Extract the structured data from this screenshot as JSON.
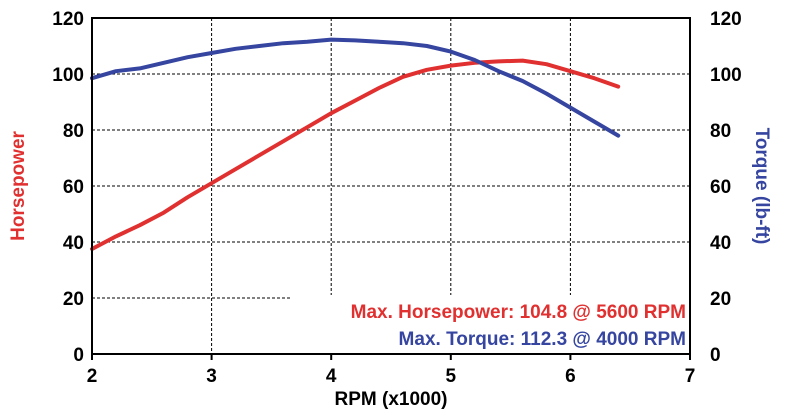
{
  "chart_data": {
    "type": "line",
    "xlabel": "RPM (x1000)",
    "xlim": [
      2,
      7
    ],
    "xticks": [
      2,
      3,
      4,
      5,
      6,
      7
    ],
    "grid": true,
    "y_left": {
      "label": "Horsepower",
      "lim": [
        0,
        120
      ],
      "ticks": [
        0,
        20,
        40,
        60,
        80,
        100,
        120
      ],
      "color": "#e03030"
    },
    "y_right": {
      "label": "Torque (lb-ft)",
      "lim": [
        0,
        120
      ],
      "ticks": [
        0,
        20,
        40,
        60,
        80,
        100,
        120
      ],
      "color": "#3545a0"
    },
    "series": [
      {
        "axis": "left",
        "color": "#e03030",
        "x": [
          2.0,
          2.2,
          2.4,
          2.6,
          2.8,
          3.0,
          3.2,
          3.4,
          3.6,
          3.8,
          4.0,
          4.2,
          4.4,
          4.6,
          4.8,
          5.0,
          5.2,
          5.4,
          5.6,
          5.8,
          6.0,
          6.2,
          6.4
        ],
        "y": [
          37.5,
          42,
          46,
          50.5,
          56,
          61,
          66,
          71,
          76,
          81,
          86,
          90.5,
          95,
          99,
          101.5,
          103,
          104,
          104.5,
          104.8,
          103.5,
          101,
          98.5,
          95.5
        ]
      },
      {
        "axis": "right",
        "color": "#3545a0",
        "x": [
          2.0,
          2.2,
          2.4,
          2.6,
          2.8,
          3.0,
          3.2,
          3.4,
          3.6,
          3.8,
          4.0,
          4.2,
          4.4,
          4.6,
          4.8,
          5.0,
          5.2,
          5.4,
          5.6,
          5.8,
          6.0,
          6.2,
          6.4
        ],
        "y": [
          98.5,
          101,
          102,
          104,
          106,
          107.5,
          109,
          110,
          111,
          111.5,
          112.3,
          112,
          111.5,
          111,
          110,
          108,
          105,
          101,
          97.5,
          93,
          88,
          83,
          78
        ]
      }
    ],
    "annotations": [
      {
        "text": "Max. Horsepower: 104.8 @ 5600 RPM",
        "color": "#e03030"
      },
      {
        "text": "Max. Torque: 112.3 @ 4000 RPM",
        "color": "#3545a0"
      }
    ]
  }
}
